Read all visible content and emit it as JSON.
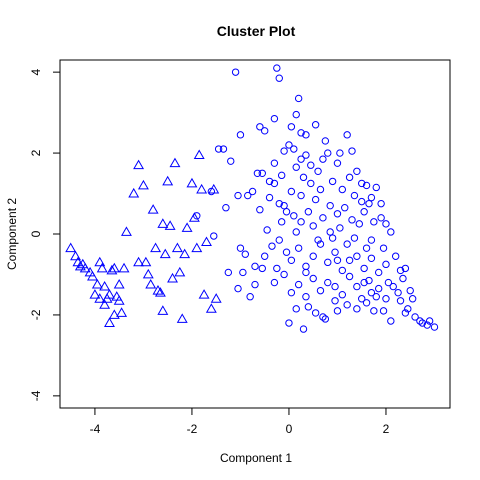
{
  "chart_data": {
    "type": "scatter",
    "title": "Cluster Plot",
    "xlabel": "Component 1",
    "ylabel": "Component 2",
    "xlim": [
      -4.72,
      3.32
    ],
    "ylim": [
      -4.3,
      4.3
    ],
    "xticks": [
      -4,
      -2,
      0,
      2
    ],
    "yticks": [
      -4,
      -2,
      0,
      2,
      4
    ],
    "grid": false,
    "legend": "none",
    "colors": {
      "points": "#0000ff",
      "axes": "#000000"
    },
    "series": [
      {
        "marker": "triangle",
        "points": [
          [
            -4.5,
            -0.35
          ],
          [
            -4.4,
            -0.55
          ],
          [
            -4.35,
            -0.7
          ],
          [
            -4.3,
            -0.8
          ],
          [
            -4.25,
            -0.75
          ],
          [
            -4.2,
            -0.85
          ],
          [
            -4.1,
            -0.95
          ],
          [
            -4.05,
            -1.05
          ],
          [
            -3.95,
            -1.25
          ],
          [
            -3.9,
            -0.7
          ],
          [
            -3.85,
            -0.85
          ],
          [
            -3.8,
            -1.3
          ],
          [
            -3.75,
            -1.6
          ],
          [
            -3.7,
            -1.5
          ],
          [
            -3.65,
            -0.9
          ],
          [
            -3.6,
            -0.85
          ],
          [
            -3.55,
            -1.55
          ],
          [
            -3.5,
            -1.65
          ],
          [
            -3.45,
            -1.95
          ],
          [
            -3.4,
            -0.85
          ],
          [
            -3.35,
            0.05
          ],
          [
            -3.6,
            -2.0
          ],
          [
            -3.7,
            -2.2
          ],
          [
            -3.5,
            -1.25
          ],
          [
            -4.0,
            -1.5
          ],
          [
            -3.9,
            -1.6
          ],
          [
            -3.8,
            -1.75
          ],
          [
            -3.1,
            1.7
          ],
          [
            -3.0,
            1.2
          ],
          [
            -2.95,
            -0.7
          ],
          [
            -2.9,
            -1.0
          ],
          [
            -2.85,
            -1.25
          ],
          [
            -2.8,
            0.6
          ],
          [
            -2.75,
            -0.35
          ],
          [
            -2.7,
            -1.4
          ],
          [
            -2.65,
            -1.45
          ],
          [
            -2.6,
            -1.9
          ],
          [
            -2.55,
            -0.5
          ],
          [
            -2.5,
            1.3
          ],
          [
            -2.45,
            0.2
          ],
          [
            -2.4,
            -1.1
          ],
          [
            -2.35,
            1.75
          ],
          [
            -2.3,
            -0.35
          ],
          [
            -2.25,
            -0.95
          ],
          [
            -2.2,
            -2.1
          ],
          [
            -2.15,
            -0.5
          ],
          [
            -2.1,
            0.15
          ],
          [
            -2.0,
            1.25
          ],
          [
            -1.95,
            0.4
          ],
          [
            -1.9,
            -0.35
          ],
          [
            -1.85,
            1.95
          ],
          [
            -1.8,
            1.1
          ],
          [
            -1.75,
            -1.5
          ],
          [
            -1.7,
            -0.2
          ],
          [
            -1.6,
            -1.85
          ],
          [
            -1.55,
            1.1
          ],
          [
            -1.5,
            -1.6
          ],
          [
            -3.2,
            1.0
          ],
          [
            -3.1,
            -0.7
          ],
          [
            -2.6,
            0.25
          ]
        ]
      },
      {
        "marker": "circle",
        "points": [
          [
            -1.1,
            4.0
          ],
          [
            -0.25,
            4.1
          ],
          [
            -0.2,
            3.85
          ],
          [
            0.2,
            3.35
          ],
          [
            0.15,
            2.95
          ],
          [
            0.25,
            2.5
          ],
          [
            0.35,
            2.45
          ],
          [
            -0.6,
            2.65
          ],
          [
            -0.5,
            2.55
          ],
          [
            -0.3,
            2.85
          ],
          [
            -1.0,
            2.45
          ],
          [
            -1.35,
            2.1
          ],
          [
            -1.45,
            2.1
          ],
          [
            -1.2,
            1.8
          ],
          [
            -0.65,
            1.5
          ],
          [
            -0.55,
            1.5
          ],
          [
            -0.3,
            1.75
          ],
          [
            -0.1,
            2.05
          ],
          [
            0.0,
            2.2
          ],
          [
            0.1,
            2.1
          ],
          [
            0.15,
            1.65
          ],
          [
            0.3,
            1.4
          ],
          [
            0.45,
            1.25
          ],
          [
            0.6,
            1.55
          ],
          [
            0.7,
            1.85
          ],
          [
            0.8,
            2.0
          ],
          [
            0.55,
            2.7
          ],
          [
            0.75,
            2.3
          ],
          [
            1.0,
            1.75
          ],
          [
            1.2,
            2.45
          ],
          [
            1.3,
            2.05
          ],
          [
            1.4,
            1.55
          ],
          [
            1.5,
            1.25
          ],
          [
            1.6,
            1.2
          ],
          [
            1.7,
            0.9
          ],
          [
            1.8,
            1.15
          ],
          [
            1.9,
            0.75
          ],
          [
            2.0,
            0.25
          ],
          [
            2.1,
            0.05
          ],
          [
            -1.05,
            0.95
          ],
          [
            -1.3,
            0.65
          ],
          [
            -0.85,
            0.95
          ],
          [
            -0.6,
            0.6
          ],
          [
            -0.4,
            0.9
          ],
          [
            -0.2,
            0.75
          ],
          [
            -0.05,
            0.55
          ],
          [
            0.1,
            0.45
          ],
          [
            0.25,
            0.3
          ],
          [
            0.4,
            0.55
          ],
          [
            0.55,
            0.85
          ],
          [
            0.7,
            0.4
          ],
          [
            0.85,
            0.7
          ],
          [
            1.0,
            0.5
          ],
          [
            1.15,
            0.65
          ],
          [
            1.3,
            0.35
          ],
          [
            1.45,
            0.25
          ],
          [
            1.55,
            0.55
          ],
          [
            1.65,
            0.75
          ],
          [
            1.75,
            0.3
          ],
          [
            -1.55,
            -0.05
          ],
          [
            -1.0,
            -0.35
          ],
          [
            -0.9,
            -0.5
          ],
          [
            -0.7,
            -0.8
          ],
          [
            -0.5,
            -0.55
          ],
          [
            -0.35,
            -0.3
          ],
          [
            -0.2,
            -0.15
          ],
          [
            -0.05,
            -0.45
          ],
          [
            0.05,
            -0.65
          ],
          [
            0.2,
            -0.35
          ],
          [
            0.35,
            -0.8
          ],
          [
            0.5,
            -0.55
          ],
          [
            0.65,
            -0.25
          ],
          [
            0.8,
            -0.7
          ],
          [
            0.95,
            -0.45
          ],
          [
            1.1,
            -0.9
          ],
          [
            1.25,
            -0.65
          ],
          [
            1.4,
            -0.55
          ],
          [
            1.55,
            -0.85
          ],
          [
            1.7,
            -0.6
          ],
          [
            1.85,
            -0.95
          ],
          [
            2.0,
            -0.75
          ],
          [
            -1.25,
            -0.95
          ],
          [
            -1.05,
            -1.35
          ],
          [
            -0.8,
            -1.55
          ],
          [
            -0.55,
            -0.85
          ],
          [
            -0.3,
            -1.2
          ],
          [
            -0.1,
            -1.0
          ],
          [
            0.05,
            -1.45
          ],
          [
            0.2,
            -1.25
          ],
          [
            0.35,
            -1.55
          ],
          [
            0.5,
            -1.1
          ],
          [
            0.65,
            -1.4
          ],
          [
            0.8,
            -1.2
          ],
          [
            0.95,
            -1.3
          ],
          [
            1.1,
            -1.5
          ],
          [
            1.25,
            -1.05
          ],
          [
            1.4,
            -1.3
          ],
          [
            1.55,
            -1.2
          ],
          [
            1.7,
            -1.45
          ],
          [
            1.85,
            -1.35
          ],
          [
            2.0,
            -1.6
          ],
          [
            2.15,
            -1.3
          ],
          [
            2.3,
            -1.65
          ],
          [
            2.45,
            -1.85
          ],
          [
            2.6,
            -2.05
          ],
          [
            2.75,
            -2.2
          ],
          [
            2.9,
            -2.15
          ],
          [
            3.0,
            -2.3
          ],
          [
            2.85,
            -2.25
          ],
          [
            2.7,
            -2.15
          ],
          [
            2.5,
            -1.4
          ],
          [
            2.3,
            -0.9
          ],
          [
            2.4,
            -0.85
          ],
          [
            0.0,
            -2.2
          ],
          [
            0.3,
            -2.35
          ],
          [
            0.7,
            -2.05
          ],
          [
            0.75,
            -2.1
          ],
          [
            1.0,
            -1.9
          ],
          [
            1.2,
            -1.75
          ],
          [
            1.4,
            -1.85
          ],
          [
            1.6,
            -1.7
          ],
          [
            1.8,
            -1.55
          ],
          [
            1.95,
            -1.9
          ],
          [
            2.1,
            -2.15
          ],
          [
            0.4,
            -1.8
          ],
          [
            -0.25,
            -0.85
          ],
          [
            -0.45,
            0.1
          ],
          [
            0.6,
            -0.15
          ],
          [
            1.35,
            -0.1
          ],
          [
            1.05,
            0.15
          ],
          [
            0.9,
            -0.1
          ],
          [
            0.15,
            0.05
          ],
          [
            -0.15,
            0.3
          ],
          [
            -0.75,
            1.05
          ],
          [
            -0.3,
            1.25
          ],
          [
            0.05,
            1.05
          ],
          [
            0.25,
            0.95
          ],
          [
            0.45,
            1.7
          ],
          [
            0.65,
            1.1
          ],
          [
            0.9,
            1.3
          ],
          [
            1.1,
            1.1
          ],
          [
            1.35,
            0.95
          ],
          [
            1.5,
            0.8
          ],
          [
            1.9,
            0.4
          ],
          [
            0.05,
            2.65
          ],
          [
            0.25,
            1.85
          ],
          [
            0.85,
            0.05
          ],
          [
            1.2,
            -0.25
          ],
          [
            1.7,
            -0.15
          ],
          [
            1.95,
            -0.35
          ],
          [
            2.2,
            -0.55
          ],
          [
            2.35,
            -1.1
          ],
          [
            2.55,
            -1.6
          ],
          [
            -1.9,
            0.45
          ],
          [
            -1.6,
            1.05
          ],
          [
            -0.95,
            -0.95
          ],
          [
            -0.7,
            -1.25
          ],
          [
            0.15,
            -1.85
          ],
          [
            0.55,
            -1.95
          ],
          [
            1.5,
            -1.6
          ],
          [
            1.75,
            -1.9
          ],
          [
            2.05,
            -1.2
          ],
          [
            2.25,
            -1.45
          ],
          [
            0.35,
            -0.95
          ],
          [
            1.0,
            -0.65
          ],
          [
            1.6,
            -0.35
          ],
          [
            0.5,
            0.2
          ],
          [
            -0.1,
            0.7
          ],
          [
            1.25,
            1.4
          ],
          [
            1.05,
            2.0
          ],
          [
            0.35,
            1.95
          ],
          [
            -0.15,
            1.45
          ],
          [
            -0.4,
            1.3
          ],
          [
            0.95,
            -1.65
          ],
          [
            1.65,
            -1.15
          ],
          [
            2.4,
            -1.95
          ]
        ]
      }
    ]
  }
}
